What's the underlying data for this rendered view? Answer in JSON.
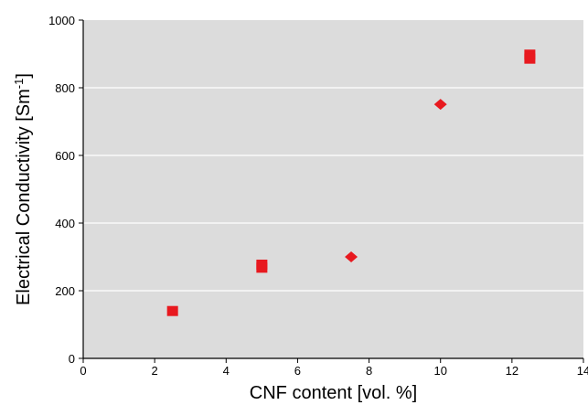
{
  "chart_data": {
    "type": "scatter",
    "title": "",
    "xlabel": "CNF content [vol. %]",
    "ylabel_main": "Electrical Conductivity [Sm",
    "ylabel_sup": "-1",
    "ylabel_close": "]",
    "xlim": [
      0,
      14
    ],
    "ylim": [
      0,
      1000
    ],
    "xticks": [
      0,
      2,
      4,
      6,
      8,
      10,
      12,
      14
    ],
    "yticks": [
      0,
      200,
      400,
      600,
      800,
      1000
    ],
    "grid": "horizontal",
    "plot_background": "#dcdcdc",
    "grid_color": "#ffffff",
    "marker_color": "#e8191f",
    "series": [
      {
        "marker": "square",
        "points": [
          {
            "x": 2.5,
            "y": 140
          },
          {
            "x": 5.0,
            "y": 277
          },
          {
            "x": 5.0,
            "y": 268
          },
          {
            "x": 12.5,
            "y": 898
          },
          {
            "x": 12.5,
            "y": 886
          }
        ]
      },
      {
        "marker": "diamond",
        "points": [
          {
            "x": 7.5,
            "y": 300
          },
          {
            "x": 10.0,
            "y": 751
          }
        ]
      }
    ]
  }
}
